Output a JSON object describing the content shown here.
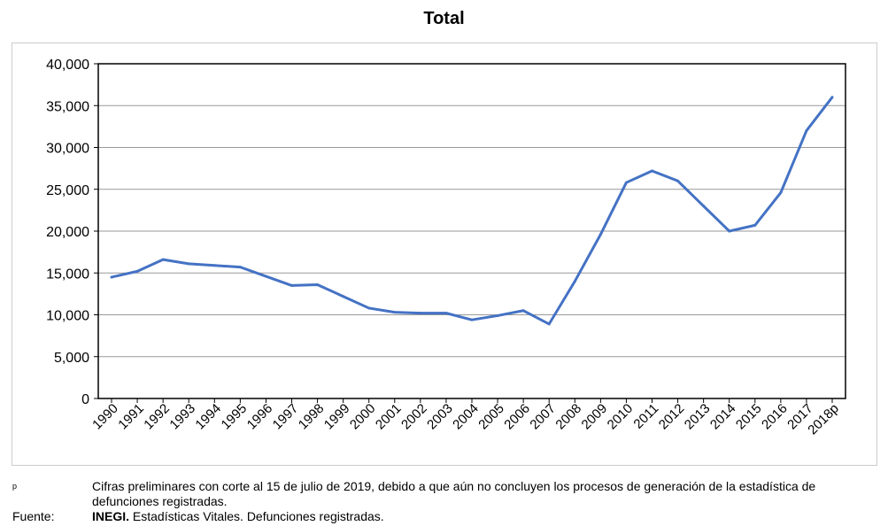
{
  "chart_data": {
    "type": "line",
    "title": "Total",
    "xlabel": "",
    "ylabel": "",
    "categories": [
      "1990",
      "1991",
      "1992",
      "1993",
      "1994",
      "1995",
      "1996",
      "1997",
      "1998",
      "1999",
      "2000",
      "2001",
      "2002",
      "2003",
      "2004",
      "2005",
      "2006",
      "2007",
      "2008",
      "2009",
      "2010",
      "2011",
      "2012",
      "2013",
      "2014",
      "2015",
      "2016",
      "2017",
      "2018p"
    ],
    "series": [
      {
        "name": "Total",
        "color": "#4472C4",
        "values": [
          14500,
          15200,
          16600,
          16100,
          15900,
          15700,
          14600,
          13500,
          13600,
          12200,
          10800,
          10300,
          10200,
          10200,
          9400,
          9900,
          10500,
          8900,
          14000,
          19600,
          25800,
          27200,
          26000,
          23000,
          20000,
          20700,
          24600,
          32000,
          36000
        ]
      }
    ],
    "ylim": [
      0,
      40000
    ],
    "yticks": [
      "0",
      "5,000",
      "10,000",
      "15,000",
      "20,000",
      "25,000",
      "30,000",
      "35,000",
      "40,000"
    ],
    "grid": true,
    "legend": "none"
  },
  "notes": {
    "p_marker": "p",
    "p_text": "Cifras preliminares con corte al 15 de julio de 2019, debido a que aún no concluyen los procesos de generación de la estadística de defunciones registradas.",
    "source_label": "Fuente:",
    "source_bold": "INEGI.",
    "source_text": " Estadísticas Vitales. Defunciones registradas."
  }
}
